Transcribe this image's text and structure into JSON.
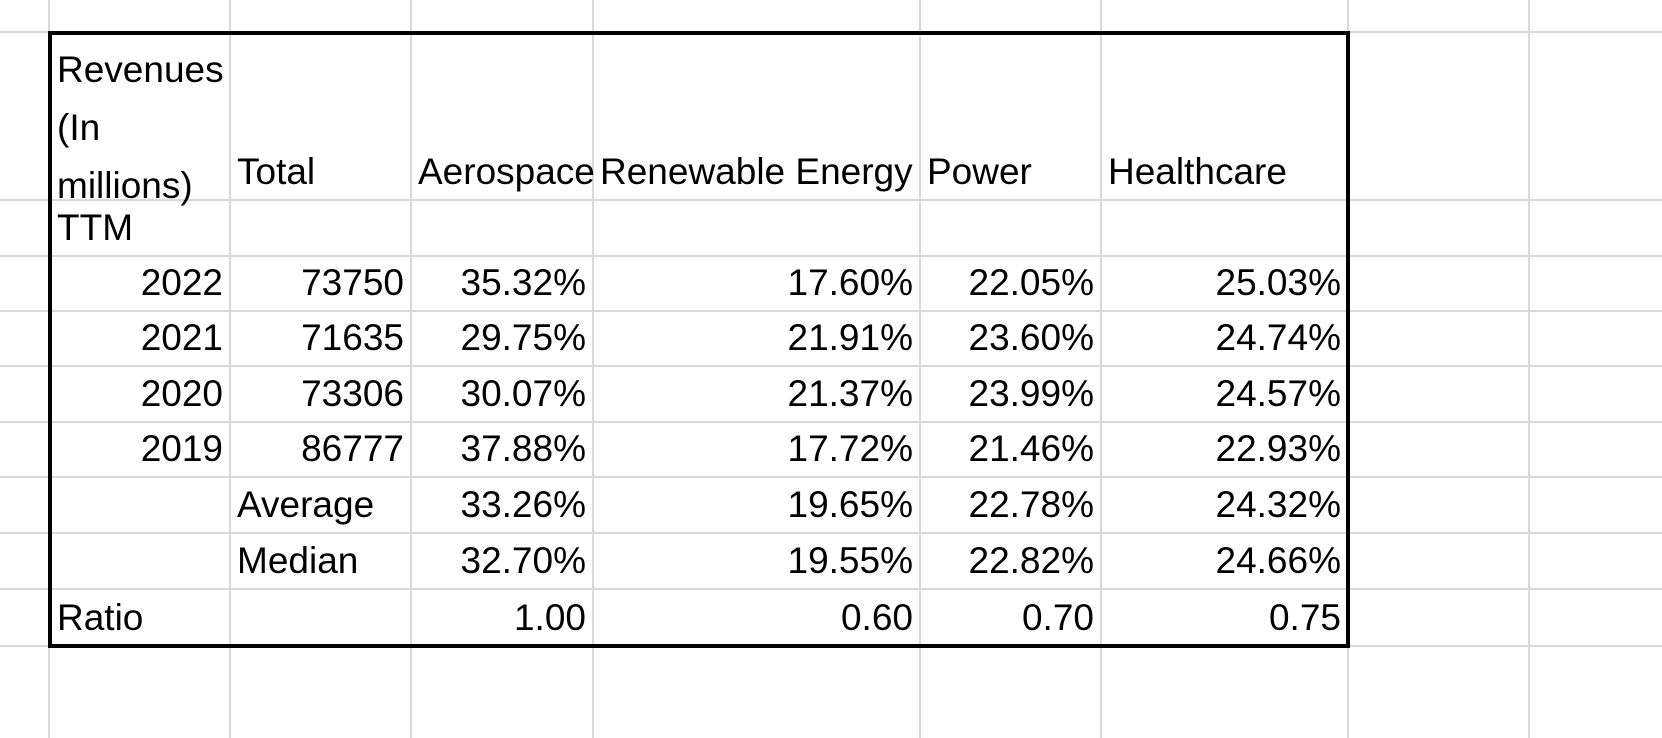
{
  "table": {
    "header": {
      "label_col": "Revenues (In millions)",
      "total": "Total",
      "aerospace": "Aerospace",
      "renewable": "Renewable Energy",
      "power": "Power",
      "healthcare": "Healthcare"
    },
    "ttm_label": "TTM",
    "rows": [
      {
        "year": "2022",
        "total": "73750",
        "aerospace": "35.32%",
        "renewable": "17.60%",
        "power": "22.05%",
        "healthcare": "25.03%"
      },
      {
        "year": "2021",
        "total": "71635",
        "aerospace": "29.75%",
        "renewable": "21.91%",
        "power": "23.60%",
        "healthcare": "24.74%"
      },
      {
        "year": "2020",
        "total": "73306",
        "aerospace": "30.07%",
        "renewable": "21.37%",
        "power": "23.99%",
        "healthcare": "24.57%"
      },
      {
        "year": "2019",
        "total": "86777",
        "aerospace": "37.88%",
        "renewable": "17.72%",
        "power": "21.46%",
        "healthcare": "22.93%"
      }
    ],
    "average": {
      "label": "Average",
      "aerospace": "33.26%",
      "renewable": "19.65%",
      "power": "22.78%",
      "healthcare": "24.32%"
    },
    "median": {
      "label": "Median",
      "aerospace": "32.70%",
      "renewable": "19.55%",
      "power": "22.82%",
      "healthcare": "24.66%"
    },
    "ratio": {
      "label": "Ratio",
      "aerospace": "1.00",
      "renewable": "0.60",
      "power": "0.70",
      "healthcare": "0.75"
    }
  }
}
